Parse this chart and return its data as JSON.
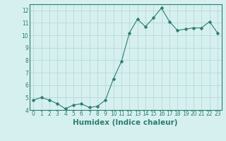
{
  "x": [
    0,
    1,
    2,
    3,
    4,
    5,
    6,
    7,
    8,
    9,
    10,
    11,
    12,
    13,
    14,
    15,
    16,
    17,
    18,
    19,
    20,
    21,
    22,
    23
  ],
  "y": [
    4.8,
    5.0,
    4.8,
    4.5,
    4.1,
    4.4,
    4.5,
    4.2,
    4.3,
    4.8,
    6.5,
    7.9,
    10.2,
    11.3,
    10.7,
    11.4,
    12.2,
    11.1,
    10.4,
    10.5,
    10.6,
    10.6,
    11.1,
    10.2
  ],
  "line_color": "#2d7d6e",
  "marker": "D",
  "marker_size": 2.5,
  "bg_color": "#d6f0f0",
  "grid_color": "#b8d8d8",
  "xlabel": "Humidex (Indice chaleur)",
  "xlim": [
    -0.5,
    23.5
  ],
  "ylim": [
    4,
    12.5
  ],
  "yticks": [
    4,
    5,
    6,
    7,
    8,
    9,
    10,
    11,
    12
  ],
  "xticks": [
    0,
    1,
    2,
    3,
    4,
    5,
    6,
    7,
    8,
    9,
    10,
    11,
    12,
    13,
    14,
    15,
    16,
    17,
    18,
    19,
    20,
    21,
    22,
    23
  ],
  "tick_fontsize": 5.5,
  "xlabel_fontsize": 7.5,
  "label_color": "#2d7d6e",
  "spine_color": "#2d7d6e"
}
